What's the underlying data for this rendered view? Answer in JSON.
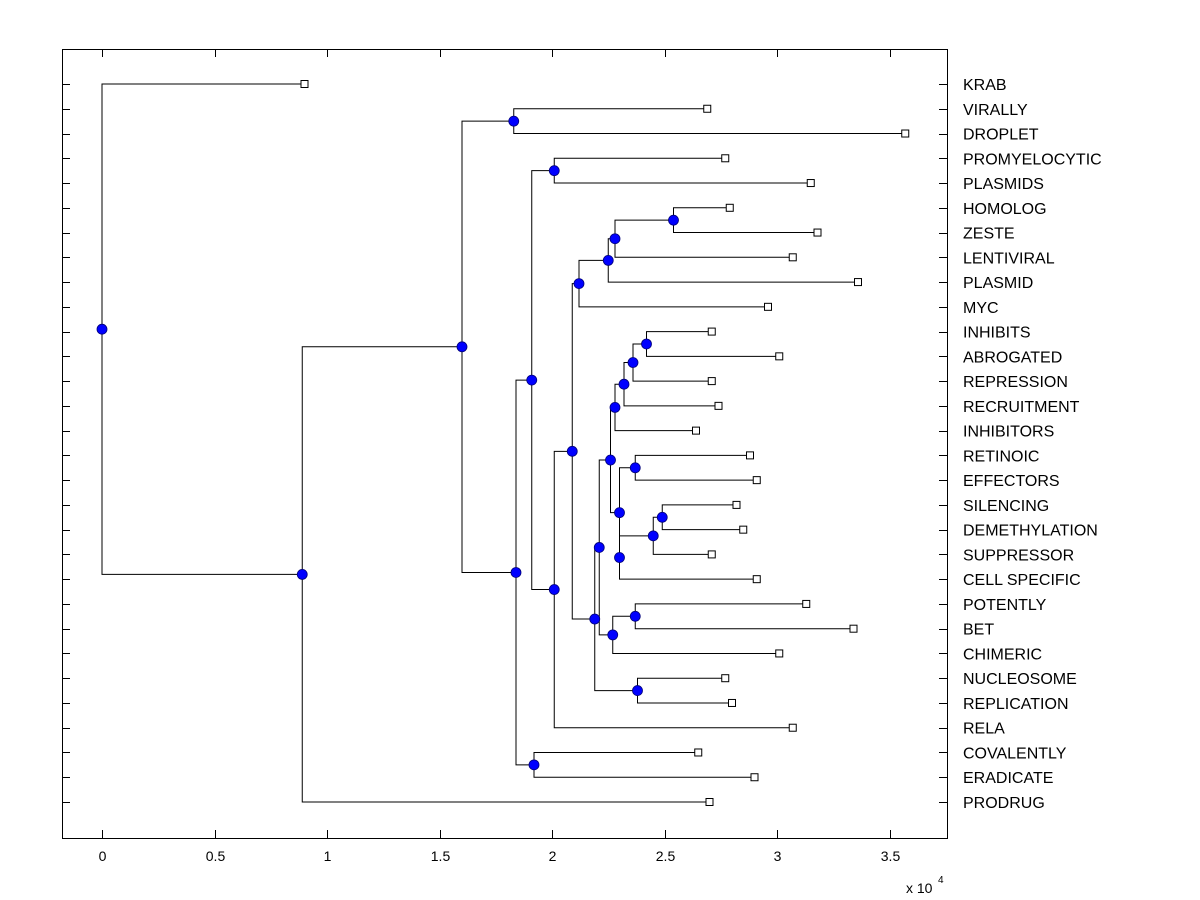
{
  "chart_data": {
    "type": "dendrogram",
    "title": "",
    "xlabel": "",
    "ylabel": "",
    "x_multiplier": "x 10",
    "x_multiplier_exp": "4",
    "xlim": [
      -0.18,
      3.75
    ],
    "xticks": [
      0,
      0.5,
      1,
      1.5,
      2,
      2.5,
      3,
      3.5
    ],
    "xtick_labels": [
      "0",
      "0.5",
      "1",
      "1.5",
      "2",
      "2.5",
      "3",
      "3.5"
    ],
    "colors": {
      "node_fill": "#0000ff",
      "line": "#000000",
      "leaf_fill": "#ffffff"
    },
    "leaves": [
      {
        "label": "KRAB",
        "x": 0.9
      },
      {
        "label": "VIRALLY",
        "x": 2.69
      },
      {
        "label": "DROPLET",
        "x": 3.57
      },
      {
        "label": "PROMYELOCYTIC",
        "x": 2.77
      },
      {
        "label": "PLASMIDS",
        "x": 3.15
      },
      {
        "label": "HOMOLOG",
        "x": 2.79
      },
      {
        "label": "ZESTE",
        "x": 3.18
      },
      {
        "label": "LENTIVIRAL",
        "x": 3.07
      },
      {
        "label": "PLASMID",
        "x": 3.36
      },
      {
        "label": "MYC",
        "x": 2.96
      },
      {
        "label": "INHIBITS",
        "x": 2.71
      },
      {
        "label": "ABROGATED",
        "x": 3.01
      },
      {
        "label": "REPRESSION",
        "x": 2.71
      },
      {
        "label": "RECRUITMENT",
        "x": 2.74
      },
      {
        "label": "INHIBITORS",
        "x": 2.64
      },
      {
        "label": "RETINOIC",
        "x": 2.88
      },
      {
        "label": "EFFECTORS",
        "x": 2.91
      },
      {
        "label": "SILENCING",
        "x": 2.82
      },
      {
        "label": "DEMETHYLATION",
        "x": 2.85
      },
      {
        "label": "SUPPRESSOR",
        "x": 2.71
      },
      {
        "label": "CELL SPECIFIC",
        "x": 2.91
      },
      {
        "label": "POTENTLY",
        "x": 3.13
      },
      {
        "label": "BET",
        "x": 3.34
      },
      {
        "label": "CHIMERIC",
        "x": 3.01
      },
      {
        "label": "NUCLEOSOME",
        "x": 2.77
      },
      {
        "label": "REPLICATION",
        "x": 2.8
      },
      {
        "label": "RELA",
        "x": 3.07
      },
      {
        "label": "COVALENTLY",
        "x": 2.65
      },
      {
        "label": "ERADICATE",
        "x": 2.9
      },
      {
        "label": "PRODRUG",
        "x": 2.7
      }
    ],
    "nodes": [
      {
        "id": "root",
        "x": 0.0,
        "children": [
          "L:0",
          "A"
        ]
      },
      {
        "id": "A",
        "x": 0.89,
        "children": [
          "B",
          "L:29"
        ]
      },
      {
        "id": "B",
        "x": 1.6,
        "children": [
          "C",
          "D"
        ]
      },
      {
        "id": "C",
        "x": 1.83,
        "children": [
          "L:1",
          "L:2"
        ]
      },
      {
        "id": "D",
        "x": 1.84,
        "children": [
          "E",
          "F"
        ]
      },
      {
        "id": "F",
        "x": 1.92,
        "children": [
          "L:27",
          "L:28"
        ]
      },
      {
        "id": "E",
        "x": 1.91,
        "children": [
          "G",
          "H"
        ]
      },
      {
        "id": "G",
        "x": 2.01,
        "children": [
          "L:3",
          "L:4"
        ]
      },
      {
        "id": "H",
        "x": 2.01,
        "children": [
          "I",
          "L:26"
        ]
      },
      {
        "id": "I",
        "x": 2.09,
        "children": [
          "J",
          "K"
        ]
      },
      {
        "id": "J",
        "x": 2.12,
        "children": [
          "Lm",
          "L:9"
        ]
      },
      {
        "id": "Lm",
        "x": 2.25,
        "children": [
          "M",
          "L:8"
        ]
      },
      {
        "id": "M",
        "x": 2.28,
        "children": [
          "N",
          "L:7"
        ]
      },
      {
        "id": "N",
        "x": 2.54,
        "children": [
          "L:5",
          "L:6"
        ]
      },
      {
        "id": "K",
        "x": 2.19,
        "children": [
          "O",
          "P"
        ]
      },
      {
        "id": "P",
        "x": 2.38,
        "children": [
          "L:24",
          "L:25"
        ]
      },
      {
        "id": "O",
        "x": 2.21,
        "children": [
          "Q",
          "R"
        ]
      },
      {
        "id": "R",
        "x": 2.27,
        "children": [
          "S",
          "L:23"
        ]
      },
      {
        "id": "S",
        "x": 2.37,
        "children": [
          "L:21",
          "L:22"
        ]
      },
      {
        "id": "Q",
        "x": 2.26,
        "children": [
          "T",
          "V0"
        ]
      },
      {
        "id": "T",
        "x": 2.28,
        "children": [
          "Y",
          "L:14"
        ]
      },
      {
        "id": "Y",
        "x": 2.32,
        "children": [
          "Z",
          "L:13"
        ]
      },
      {
        "id": "Z",
        "x": 2.36,
        "children": [
          "AA",
          "L:12"
        ]
      },
      {
        "id": "AA",
        "x": 2.42,
        "children": [
          "L:10",
          "L:11"
        ]
      },
      {
        "id": "V0",
        "x": 2.3,
        "children": [
          "V",
          "U"
        ]
      },
      {
        "id": "V",
        "x": 2.37,
        "children": [
          "L:15",
          "L:16"
        ]
      },
      {
        "id": "U",
        "x": 2.3,
        "children": [
          "W",
          "L:20"
        ]
      },
      {
        "id": "W",
        "x": 2.45,
        "children": [
          "X",
          "L:19"
        ]
      },
      {
        "id": "X",
        "x": 2.49,
        "children": [
          "L:17",
          "L:18"
        ]
      }
    ]
  }
}
